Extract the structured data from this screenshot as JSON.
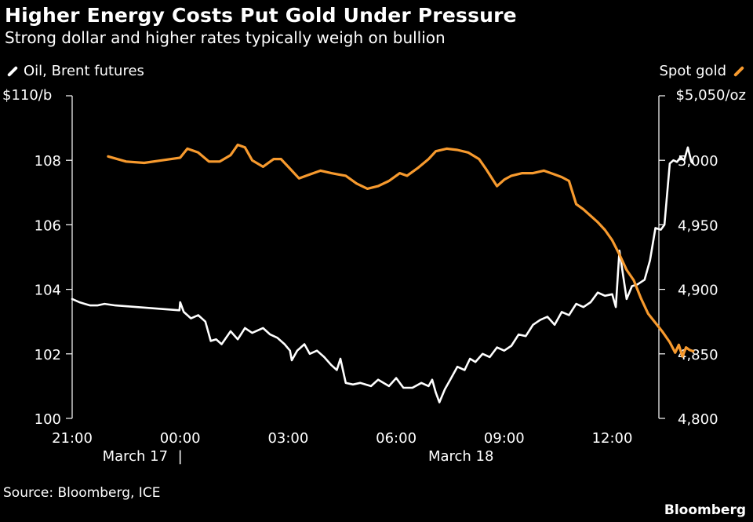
{
  "chart_data": {
    "type": "line",
    "title": "Higher Energy Costs Put Gold Under Pressure",
    "subtitle": "Strong dollar and higher rates typically weigh on bullion",
    "source": "Source: Bloomberg, ICE",
    "brand": "Bloomberg",
    "x_axis": {
      "unit": "hours since 21:00, March 17",
      "range": [
        0,
        16.7
      ],
      "ticks": [
        {
          "value": 0,
          "label": "21:00"
        },
        {
          "value": 3,
          "label": "00:00"
        },
        {
          "value": 6,
          "label": "03:00"
        },
        {
          "value": 9,
          "label": "06:00"
        },
        {
          "value": 12,
          "label": "09:00"
        },
        {
          "value": 15,
          "label": "12:00"
        }
      ],
      "date_labels": [
        {
          "value": 1.75,
          "label": "March 17"
        },
        {
          "value": 10.8,
          "label": "March 18"
        }
      ],
      "day_separator": {
        "value": 3,
        "label": "|"
      }
    },
    "left_axis": {
      "unit_label": "$110/b",
      "range": [
        100,
        110
      ],
      "ticks": [
        {
          "value": 100,
          "label": "100"
        },
        {
          "value": 102,
          "label": "102"
        },
        {
          "value": 104,
          "label": "104"
        },
        {
          "value": 106,
          "label": "106"
        },
        {
          "value": 108,
          "label": "108"
        }
      ]
    },
    "right_axis": {
      "unit_label": "$5,050/oz",
      "range": [
        4800,
        5050
      ],
      "ticks": [
        {
          "value": 4800,
          "label": "4,800"
        },
        {
          "value": 4850,
          "label": "4,850"
        },
        {
          "value": 4900,
          "label": "4,900"
        },
        {
          "value": 4950,
          "label": "4,950"
        },
        {
          "value": 5000,
          "label": "5,000"
        }
      ]
    },
    "series": [
      {
        "name": "Oil, Brent futures",
        "axis": "left",
        "color": "#ffffff",
        "legend_position": "top-left",
        "points": [
          [
            0.0,
            103.7
          ],
          [
            0.2,
            103.6
          ],
          [
            0.35,
            103.55
          ],
          [
            0.5,
            103.5
          ],
          [
            0.7,
            103.5
          ],
          [
            0.9,
            103.55
          ],
          [
            1.2,
            103.5
          ],
          [
            2.98,
            103.35
          ],
          [
            3.0,
            103.6
          ],
          [
            3.1,
            103.3
          ],
          [
            3.3,
            103.1
          ],
          [
            3.5,
            103.2
          ],
          [
            3.7,
            103.0
          ],
          [
            3.85,
            102.4
          ],
          [
            4.0,
            102.45
          ],
          [
            4.15,
            102.3
          ],
          [
            4.4,
            102.7
          ],
          [
            4.6,
            102.45
          ],
          [
            4.8,
            102.8
          ],
          [
            5.0,
            102.65
          ],
          [
            5.3,
            102.8
          ],
          [
            5.5,
            102.6
          ],
          [
            5.7,
            102.5
          ],
          [
            5.9,
            102.3
          ],
          [
            6.05,
            102.1
          ],
          [
            6.1,
            101.8
          ],
          [
            6.25,
            102.1
          ],
          [
            6.45,
            102.3
          ],
          [
            6.6,
            102.0
          ],
          [
            6.8,
            102.1
          ],
          [
            7.0,
            101.9
          ],
          [
            7.2,
            101.65
          ],
          [
            7.35,
            101.5
          ],
          [
            7.45,
            101.85
          ],
          [
            7.6,
            101.1
          ],
          [
            7.8,
            101.05
          ],
          [
            8.0,
            101.1
          ],
          [
            8.3,
            101.0
          ],
          [
            8.5,
            101.2
          ],
          [
            8.8,
            101.0
          ],
          [
            9.0,
            101.25
          ],
          [
            9.2,
            100.95
          ],
          [
            9.45,
            100.95
          ],
          [
            9.7,
            101.1
          ],
          [
            9.9,
            101.0
          ],
          [
            10.0,
            101.2
          ],
          [
            10.1,
            100.8
          ],
          [
            10.2,
            100.5
          ],
          [
            10.35,
            100.9
          ],
          [
            10.5,
            101.2
          ],
          [
            10.7,
            101.6
          ],
          [
            10.9,
            101.5
          ],
          [
            11.05,
            101.85
          ],
          [
            11.2,
            101.75
          ],
          [
            11.4,
            102.0
          ],
          [
            11.6,
            101.9
          ],
          [
            11.8,
            102.2
          ],
          [
            12.0,
            102.1
          ],
          [
            12.2,
            102.25
          ],
          [
            12.4,
            102.6
          ],
          [
            12.6,
            102.55
          ],
          [
            12.8,
            102.9
          ],
          [
            13.0,
            103.05
          ],
          [
            13.2,
            103.15
          ],
          [
            13.4,
            102.9
          ],
          [
            13.6,
            103.3
          ],
          [
            13.8,
            103.2
          ],
          [
            14.0,
            103.55
          ],
          [
            14.2,
            103.45
          ],
          [
            14.4,
            103.6
          ],
          [
            14.6,
            103.9
          ],
          [
            14.8,
            103.8
          ],
          [
            15.0,
            103.85
          ],
          [
            15.1,
            103.45
          ],
          [
            15.2,
            105.2
          ],
          [
            15.4,
            103.7
          ],
          [
            15.55,
            104.1
          ],
          [
            15.7,
            104.15
          ],
          [
            15.9,
            104.3
          ],
          [
            16.05,
            104.9
          ],
          [
            16.2,
            105.9
          ],
          [
            16.35,
            105.85
          ],
          [
            16.45,
            106.0
          ],
          [
            16.6,
            107.9
          ],
          [
            16.7,
            108.0
          ],
          [
            16.8,
            107.95
          ],
          [
            16.9,
            108.1
          ],
          [
            17.0,
            108.0
          ],
          [
            17.1,
            108.4
          ],
          [
            17.2,
            107.95
          ],
          [
            17.25,
            107.9
          ]
        ]
      },
      {
        "name": "Spot gold",
        "axis": "right",
        "color": "#f79a2e",
        "legend_position": "top-right",
        "points": [
          [
            1.0,
            5003
          ],
          [
            1.5,
            4999
          ],
          [
            2.0,
            4998
          ],
          [
            2.5,
            5000
          ],
          [
            3.0,
            5002
          ],
          [
            3.2,
            5009
          ],
          [
            3.5,
            5006
          ],
          [
            3.8,
            4999
          ],
          [
            4.1,
            4999
          ],
          [
            4.4,
            5004
          ],
          [
            4.6,
            5012
          ],
          [
            4.8,
            5010
          ],
          [
            5.0,
            5000
          ],
          [
            5.3,
            4995
          ],
          [
            5.6,
            5001
          ],
          [
            5.8,
            5001
          ],
          [
            6.0,
            4995
          ],
          [
            6.3,
            4986
          ],
          [
            6.6,
            4989
          ],
          [
            6.9,
            4992
          ],
          [
            7.2,
            4990
          ],
          [
            7.4,
            4989
          ],
          [
            7.6,
            4988
          ],
          [
            7.9,
            4982
          ],
          [
            8.2,
            4978
          ],
          [
            8.5,
            4980
          ],
          [
            8.8,
            4984
          ],
          [
            9.1,
            4990
          ],
          [
            9.3,
            4988
          ],
          [
            9.6,
            4994
          ],
          [
            9.9,
            5001
          ],
          [
            10.1,
            5007
          ],
          [
            10.4,
            5009
          ],
          [
            10.7,
            5008
          ],
          [
            11.0,
            5006
          ],
          [
            11.3,
            5001
          ],
          [
            11.5,
            4993
          ],
          [
            11.8,
            4980
          ],
          [
            12.0,
            4985
          ],
          [
            12.2,
            4988
          ],
          [
            12.5,
            4990
          ],
          [
            12.8,
            4990
          ],
          [
            13.1,
            4992
          ],
          [
            13.4,
            4989
          ],
          [
            13.6,
            4987
          ],
          [
            13.8,
            4984
          ],
          [
            14.0,
            4966
          ],
          [
            14.2,
            4962
          ],
          [
            14.4,
            4957
          ],
          [
            14.6,
            4952
          ],
          [
            14.8,
            4946
          ],
          [
            15.0,
            4938
          ],
          [
            15.2,
            4927
          ],
          [
            15.4,
            4915
          ],
          [
            15.6,
            4907
          ],
          [
            15.8,
            4893
          ],
          [
            16.0,
            4881
          ],
          [
            16.2,
            4874
          ],
          [
            16.4,
            4867
          ],
          [
            16.6,
            4859
          ],
          [
            16.75,
            4851
          ],
          [
            16.85,
            4857
          ],
          [
            16.95,
            4848
          ],
          [
            17.05,
            4855
          ],
          [
            17.15,
            4853
          ],
          [
            17.25,
            4852
          ]
        ]
      }
    ]
  }
}
